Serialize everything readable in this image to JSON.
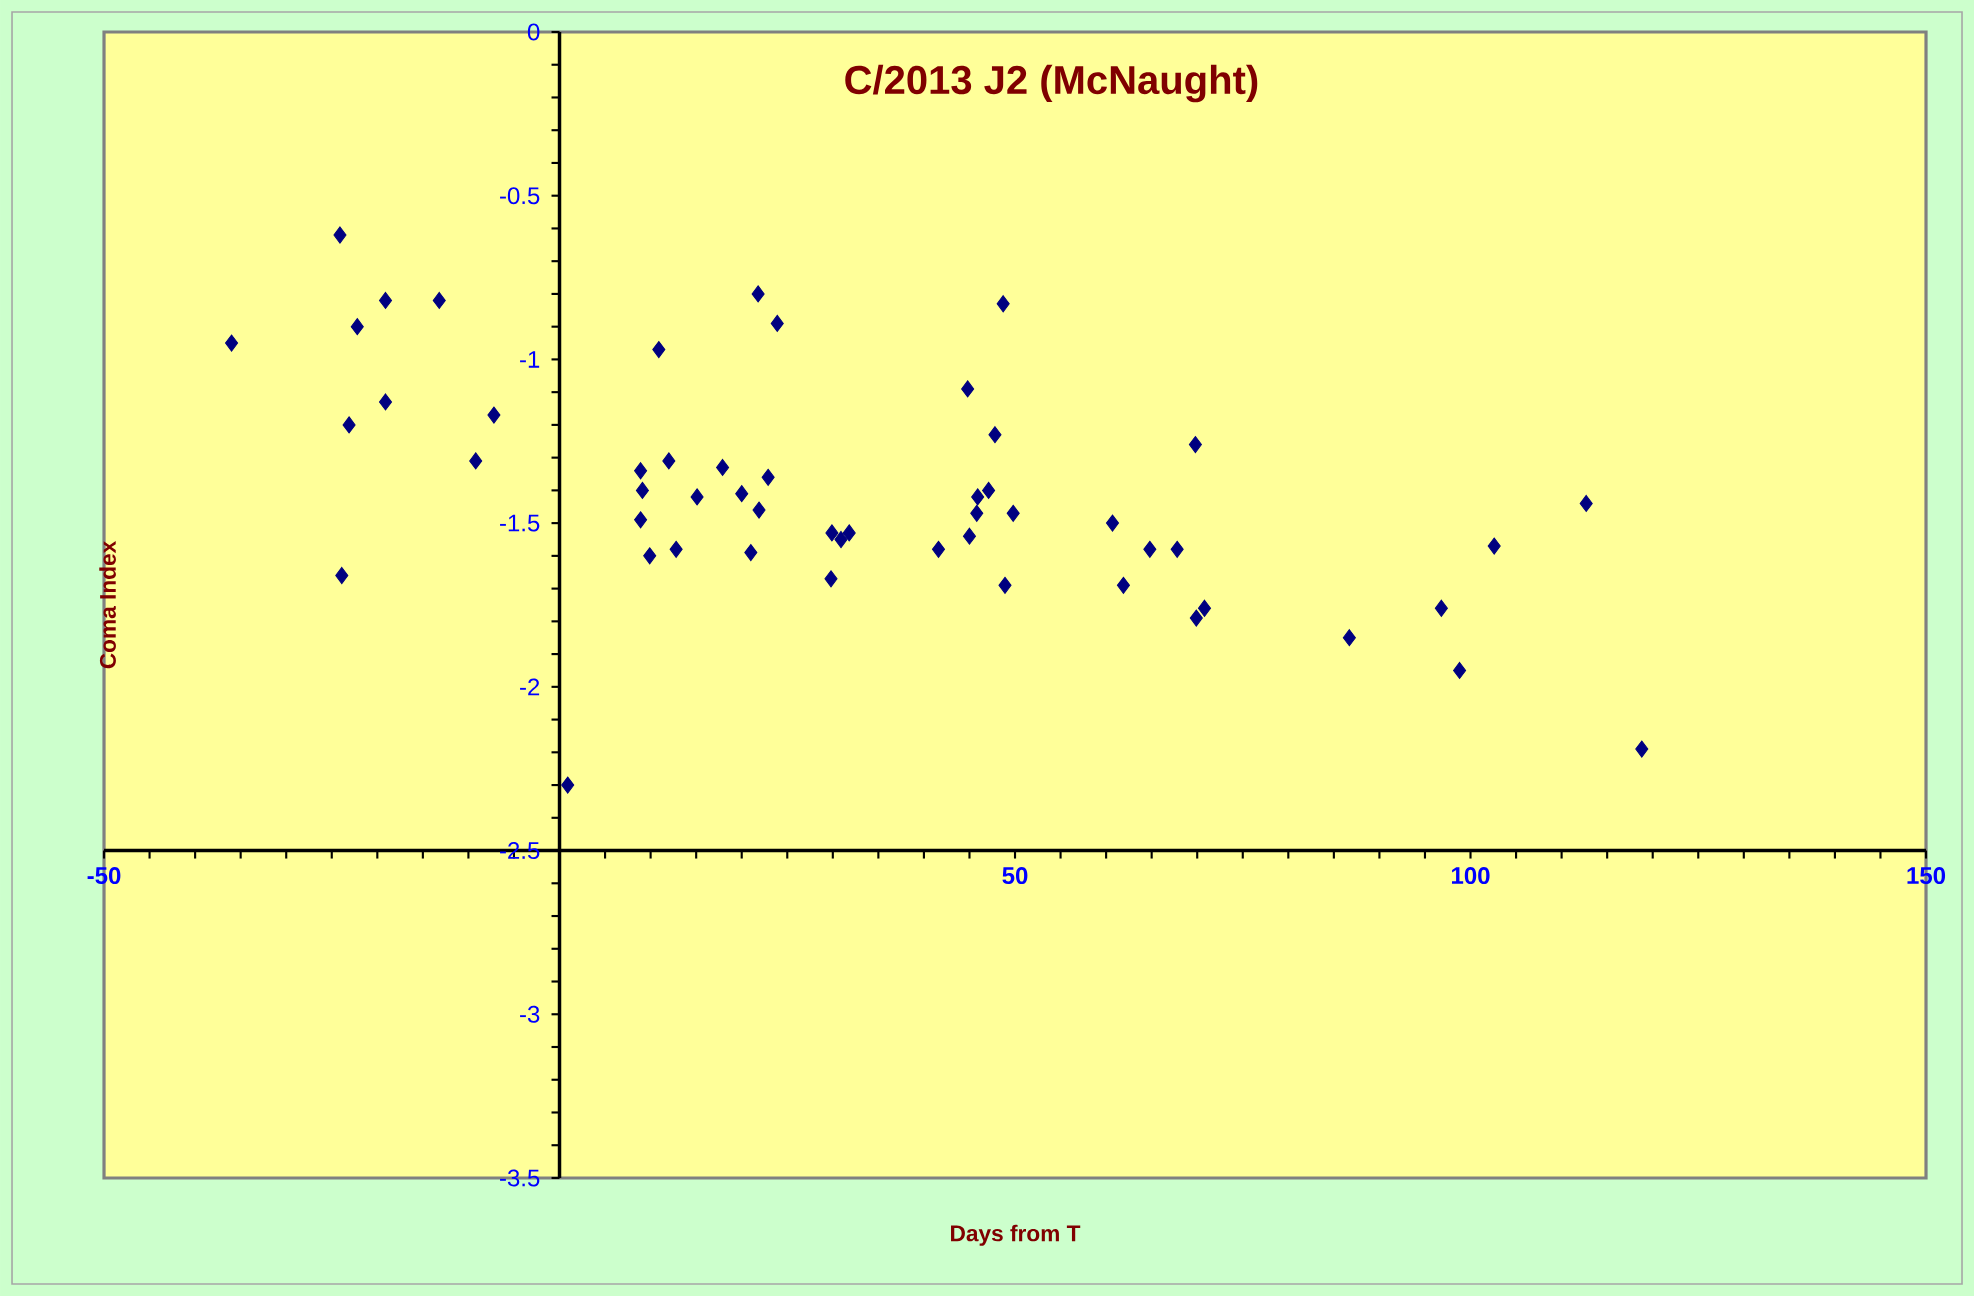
{
  "chart_data": {
    "type": "scatter",
    "title": "C/2013 J2 (McNaught)",
    "xlabel": "Days from T",
    "ylabel": "Coma Index",
    "x": [
      -36.0,
      -24.1,
      -22.2,
      -19.1,
      -13.2,
      -23.1,
      -19.1,
      -7.2,
      -9.2,
      -23.9,
      0.9,
      21.8,
      23.9,
      10.9,
      8.9,
      12.0,
      17.9,
      9.1,
      15.1,
      20.0,
      22.9,
      21.9,
      8.9,
      9.9,
      12.8,
      21.0,
      48.7,
      44.8,
      47.8,
      69.8,
      47.1,
      45.9,
      45.8,
      49.8,
      60.7,
      45.0,
      41.6,
      64.8,
      67.8,
      29.8,
      48.9,
      61.9,
      29.9,
      31.8,
      30.9,
      69.9,
      70.8,
      112.7,
      102.6,
      96.8,
      86.7,
      98.8,
      118.8
    ],
    "values": [
      -0.95,
      -0.62,
      -0.9,
      -0.82,
      -0.82,
      -1.2,
      -1.13,
      -1.17,
      -1.31,
      -1.66,
      -2.3,
      -0.8,
      -0.89,
      -0.97,
      -1.34,
      -1.31,
      -1.33,
      -1.4,
      -1.42,
      -1.41,
      -1.36,
      -1.46,
      -1.49,
      -1.6,
      -1.58,
      -1.59,
      -0.83,
      -1.09,
      -1.23,
      -1.26,
      -1.4,
      -1.42,
      -1.47,
      -1.47,
      -1.5,
      -1.54,
      -1.58,
      -1.58,
      -1.58,
      -1.67,
      -1.69,
      -1.69,
      -1.53,
      -1.53,
      -1.55,
      -1.79,
      -1.76,
      -1.44,
      -1.57,
      -1.76,
      -1.85,
      -1.95,
      -2.19
    ],
    "color": "#000080",
    "marker": "diamond",
    "xlim": [
      -50,
      150
    ],
    "ylim": [
      -3.5,
      0
    ],
    "xticks": [
      -50,
      {
        "value": 0,
        "label": null
      },
      50,
      100,
      150
    ],
    "yticks": [
      -3.5,
      -3,
      -2.5,
      -2,
      -1.5,
      -1,
      -0.5,
      0
    ]
  }
}
